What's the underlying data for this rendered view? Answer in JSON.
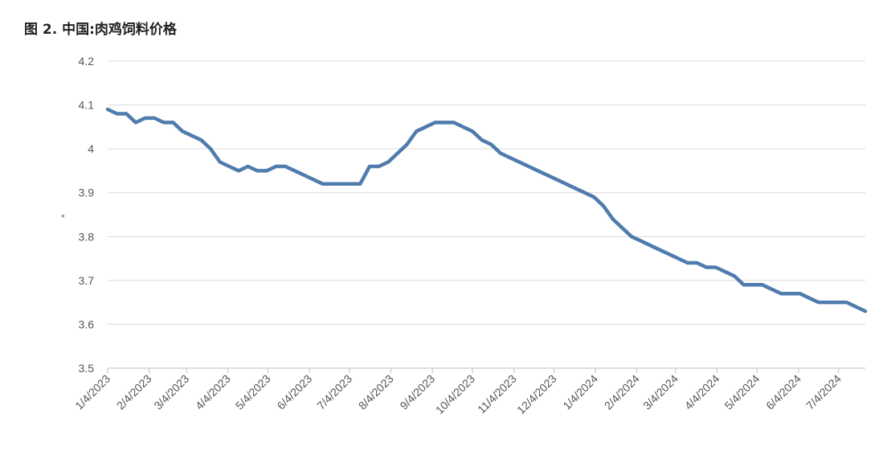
{
  "title": "图 2. 中国:肉鸡饲料价格",
  "chart_data": {
    "type": "line",
    "title": "图 2. 中国:肉鸡饲料价格",
    "xlabel": "",
    "ylabel": "*",
    "ylim": [
      3.5,
      4.2
    ],
    "yticks": [
      "3.5",
      "3.6",
      "3.7",
      "3.8",
      "3.9",
      "4",
      "4.1",
      "4.2"
    ],
    "grid": true,
    "legend": "none",
    "color": "#4f7cad",
    "x_tick_labels": [
      "1/4/2023",
      "2/4/2023",
      "3/4/2023",
      "4/4/2023",
      "5/4/2023",
      "6/4/2023",
      "7/4/2023",
      "8/4/2023",
      "9/4/2023",
      "10/4/2023",
      "11/4/2023",
      "12/4/2023",
      "1/4/2024",
      "2/4/2024",
      "3/4/2024",
      "4/4/2024",
      "5/4/2024",
      "6/4/2024",
      "7/4/2024"
    ],
    "series": [
      {
        "x": [
          "2023-01-04",
          "2023-01-11",
          "2023-01-18",
          "2023-01-25",
          "2023-02-01",
          "2023-02-08",
          "2023-02-15",
          "2023-02-22",
          "2023-03-01",
          "2023-03-08",
          "2023-03-15",
          "2023-03-22",
          "2023-03-29",
          "2023-04-05",
          "2023-04-12",
          "2023-04-19",
          "2023-04-26",
          "2023-05-03",
          "2023-05-10",
          "2023-05-17",
          "2023-05-24",
          "2023-05-31",
          "2023-06-07",
          "2023-06-14",
          "2023-06-21",
          "2023-06-28",
          "2023-07-05",
          "2023-07-12",
          "2023-07-19",
          "2023-07-26",
          "2023-08-02",
          "2023-08-09",
          "2023-08-16",
          "2023-08-23",
          "2023-08-30",
          "2023-09-06",
          "2023-09-13",
          "2023-09-20",
          "2023-09-27",
          "2023-10-04",
          "2023-10-11",
          "2023-10-18",
          "2023-10-25",
          "2023-11-01",
          "2023-11-08",
          "2023-11-15",
          "2023-11-22",
          "2023-11-29",
          "2023-12-06",
          "2023-12-13",
          "2023-12-20",
          "2023-12-27",
          "2024-01-03",
          "2024-01-10",
          "2024-01-17",
          "2024-01-24",
          "2024-01-31",
          "2024-02-07",
          "2024-02-14",
          "2024-02-21",
          "2024-02-28",
          "2024-03-06",
          "2024-03-13",
          "2024-03-20",
          "2024-03-27",
          "2024-04-03",
          "2024-04-10",
          "2024-04-17",
          "2024-04-24",
          "2024-05-01",
          "2024-05-08",
          "2024-05-15",
          "2024-05-22",
          "2024-05-29",
          "2024-06-05",
          "2024-06-12",
          "2024-06-19",
          "2024-06-26",
          "2024-07-03",
          "2024-07-10",
          "2024-07-17",
          "2024-07-24"
        ],
        "values": [
          4.09,
          4.08,
          4.08,
          4.06,
          4.07,
          4.07,
          4.06,
          4.06,
          4.04,
          4.03,
          4.02,
          4.0,
          3.97,
          3.96,
          3.95,
          3.96,
          3.95,
          3.95,
          3.96,
          3.96,
          3.95,
          3.94,
          3.93,
          3.92,
          3.92,
          3.92,
          3.92,
          3.92,
          3.96,
          3.96,
          3.97,
          3.99,
          4.01,
          4.04,
          4.05,
          4.06,
          4.06,
          4.06,
          4.05,
          4.04,
          4.02,
          4.01,
          3.99,
          3.98,
          3.97,
          3.96,
          3.95,
          3.94,
          3.93,
          3.92,
          3.91,
          3.9,
          3.89,
          3.87,
          3.84,
          3.82,
          3.8,
          3.79,
          3.78,
          3.77,
          3.76,
          3.75,
          3.74,
          3.74,
          3.73,
          3.73,
          3.72,
          3.71,
          3.69,
          3.69,
          3.69,
          3.68,
          3.67,
          3.67,
          3.67,
          3.66,
          3.65,
          3.65,
          3.65,
          3.65,
          3.64,
          3.63
        ]
      }
    ]
  }
}
